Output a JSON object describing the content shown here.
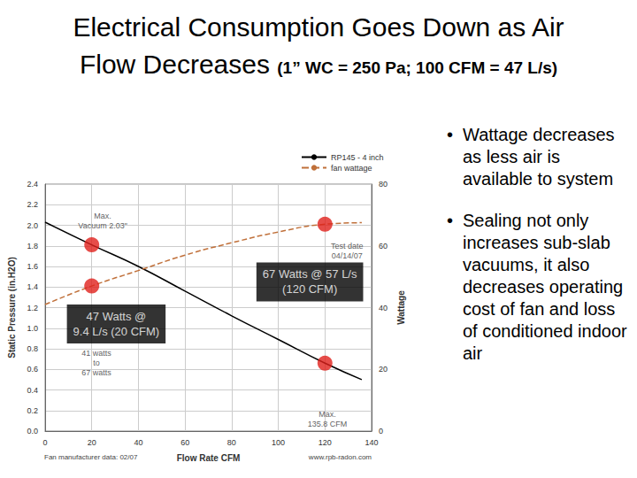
{
  "title": "Electrical Consumption Goes Down as Air Flow Decreases",
  "subtitle": "(1” WC = 250 Pa; 100 CFM = 47 L/s)",
  "bullets": [
    "Wattage decreases as less air is available to system",
    "Sealing not only increases sub-slab vacuums, it also decreases operating cost of fan and loss of conditioned indoor air"
  ],
  "chart_data": {
    "type": "line",
    "x_label": "Flow Rate CFM",
    "y_label": "Static Pressure (in.H2O)",
    "y2_label": "Wattage",
    "x": [
      0,
      20,
      40,
      60,
      80,
      100,
      120,
      135.8
    ],
    "series": [
      {
        "name": "RP145 - 4 inch",
        "color": "#000000",
        "line_style": "solid",
        "axis": "y",
        "values": [
          2.03,
          1.81,
          1.6,
          1.36,
          1.12,
          0.89,
          0.66,
          0.5
        ]
      },
      {
        "name": "fan wattage",
        "color": "#c0703a",
        "line_style": "dashed",
        "axis": "y2",
        "values": [
          41,
          47,
          52,
          57,
          61,
          64.5,
          67,
          67.5
        ]
      }
    ],
    "highlight_points": [
      {
        "x": 20,
        "y": 1.81,
        "axis": "y"
      },
      {
        "x": 20,
        "y": 47,
        "axis": "y2"
      },
      {
        "x": 120,
        "y": 67,
        "axis": "y2"
      },
      {
        "x": 120,
        "y": 0.66,
        "axis": "y"
      }
    ],
    "highlight_color": "#e0201b",
    "annotations": [
      {
        "text": "Max.\nVacuum 2.03\"",
        "x": 24.7,
        "y": 2.04
      },
      {
        "text": "Test date\n04/14/07",
        "x": 129.5,
        "y": 1.75
      },
      {
        "text": "41 watts\nto\n67 watts",
        "x": 22,
        "y": 0.66
      },
      {
        "text": "Max.\n135.8 CFM",
        "x": 121,
        "y": 0.12
      }
    ],
    "callouts": [
      {
        "text": "67 Watts @ 57 L/s\n(120 CFM)",
        "x": 113.5,
        "y": 1.45
      },
      {
        "text": "47 Watts @\n9.4 L/s (20 CFM)",
        "x": 30.5,
        "y": 1.04
      }
    ],
    "footnotes": [
      "Fan manufacturer data: 02/07",
      "www.rpb-radon.com"
    ],
    "xlim": [
      0,
      140
    ],
    "xticks": [
      0,
      20,
      40,
      60,
      80,
      100,
      120,
      140
    ],
    "ylim": [
      0,
      2.4
    ],
    "yticks": [
      {
        "value": 0,
        "label": "0.0"
      },
      0.2,
      0.4,
      0.6,
      0.8,
      {
        "value": 1,
        "label": "1.0"
      },
      1.2,
      1.4,
      1.6,
      1.8,
      {
        "value": 2,
        "label": "2.0"
      },
      2.2,
      2.4
    ],
    "y2lim": [
      0,
      80
    ],
    "y2ticks": [
      0,
      20,
      40,
      60,
      80
    ],
    "grid": true,
    "legend": "upper right"
  }
}
